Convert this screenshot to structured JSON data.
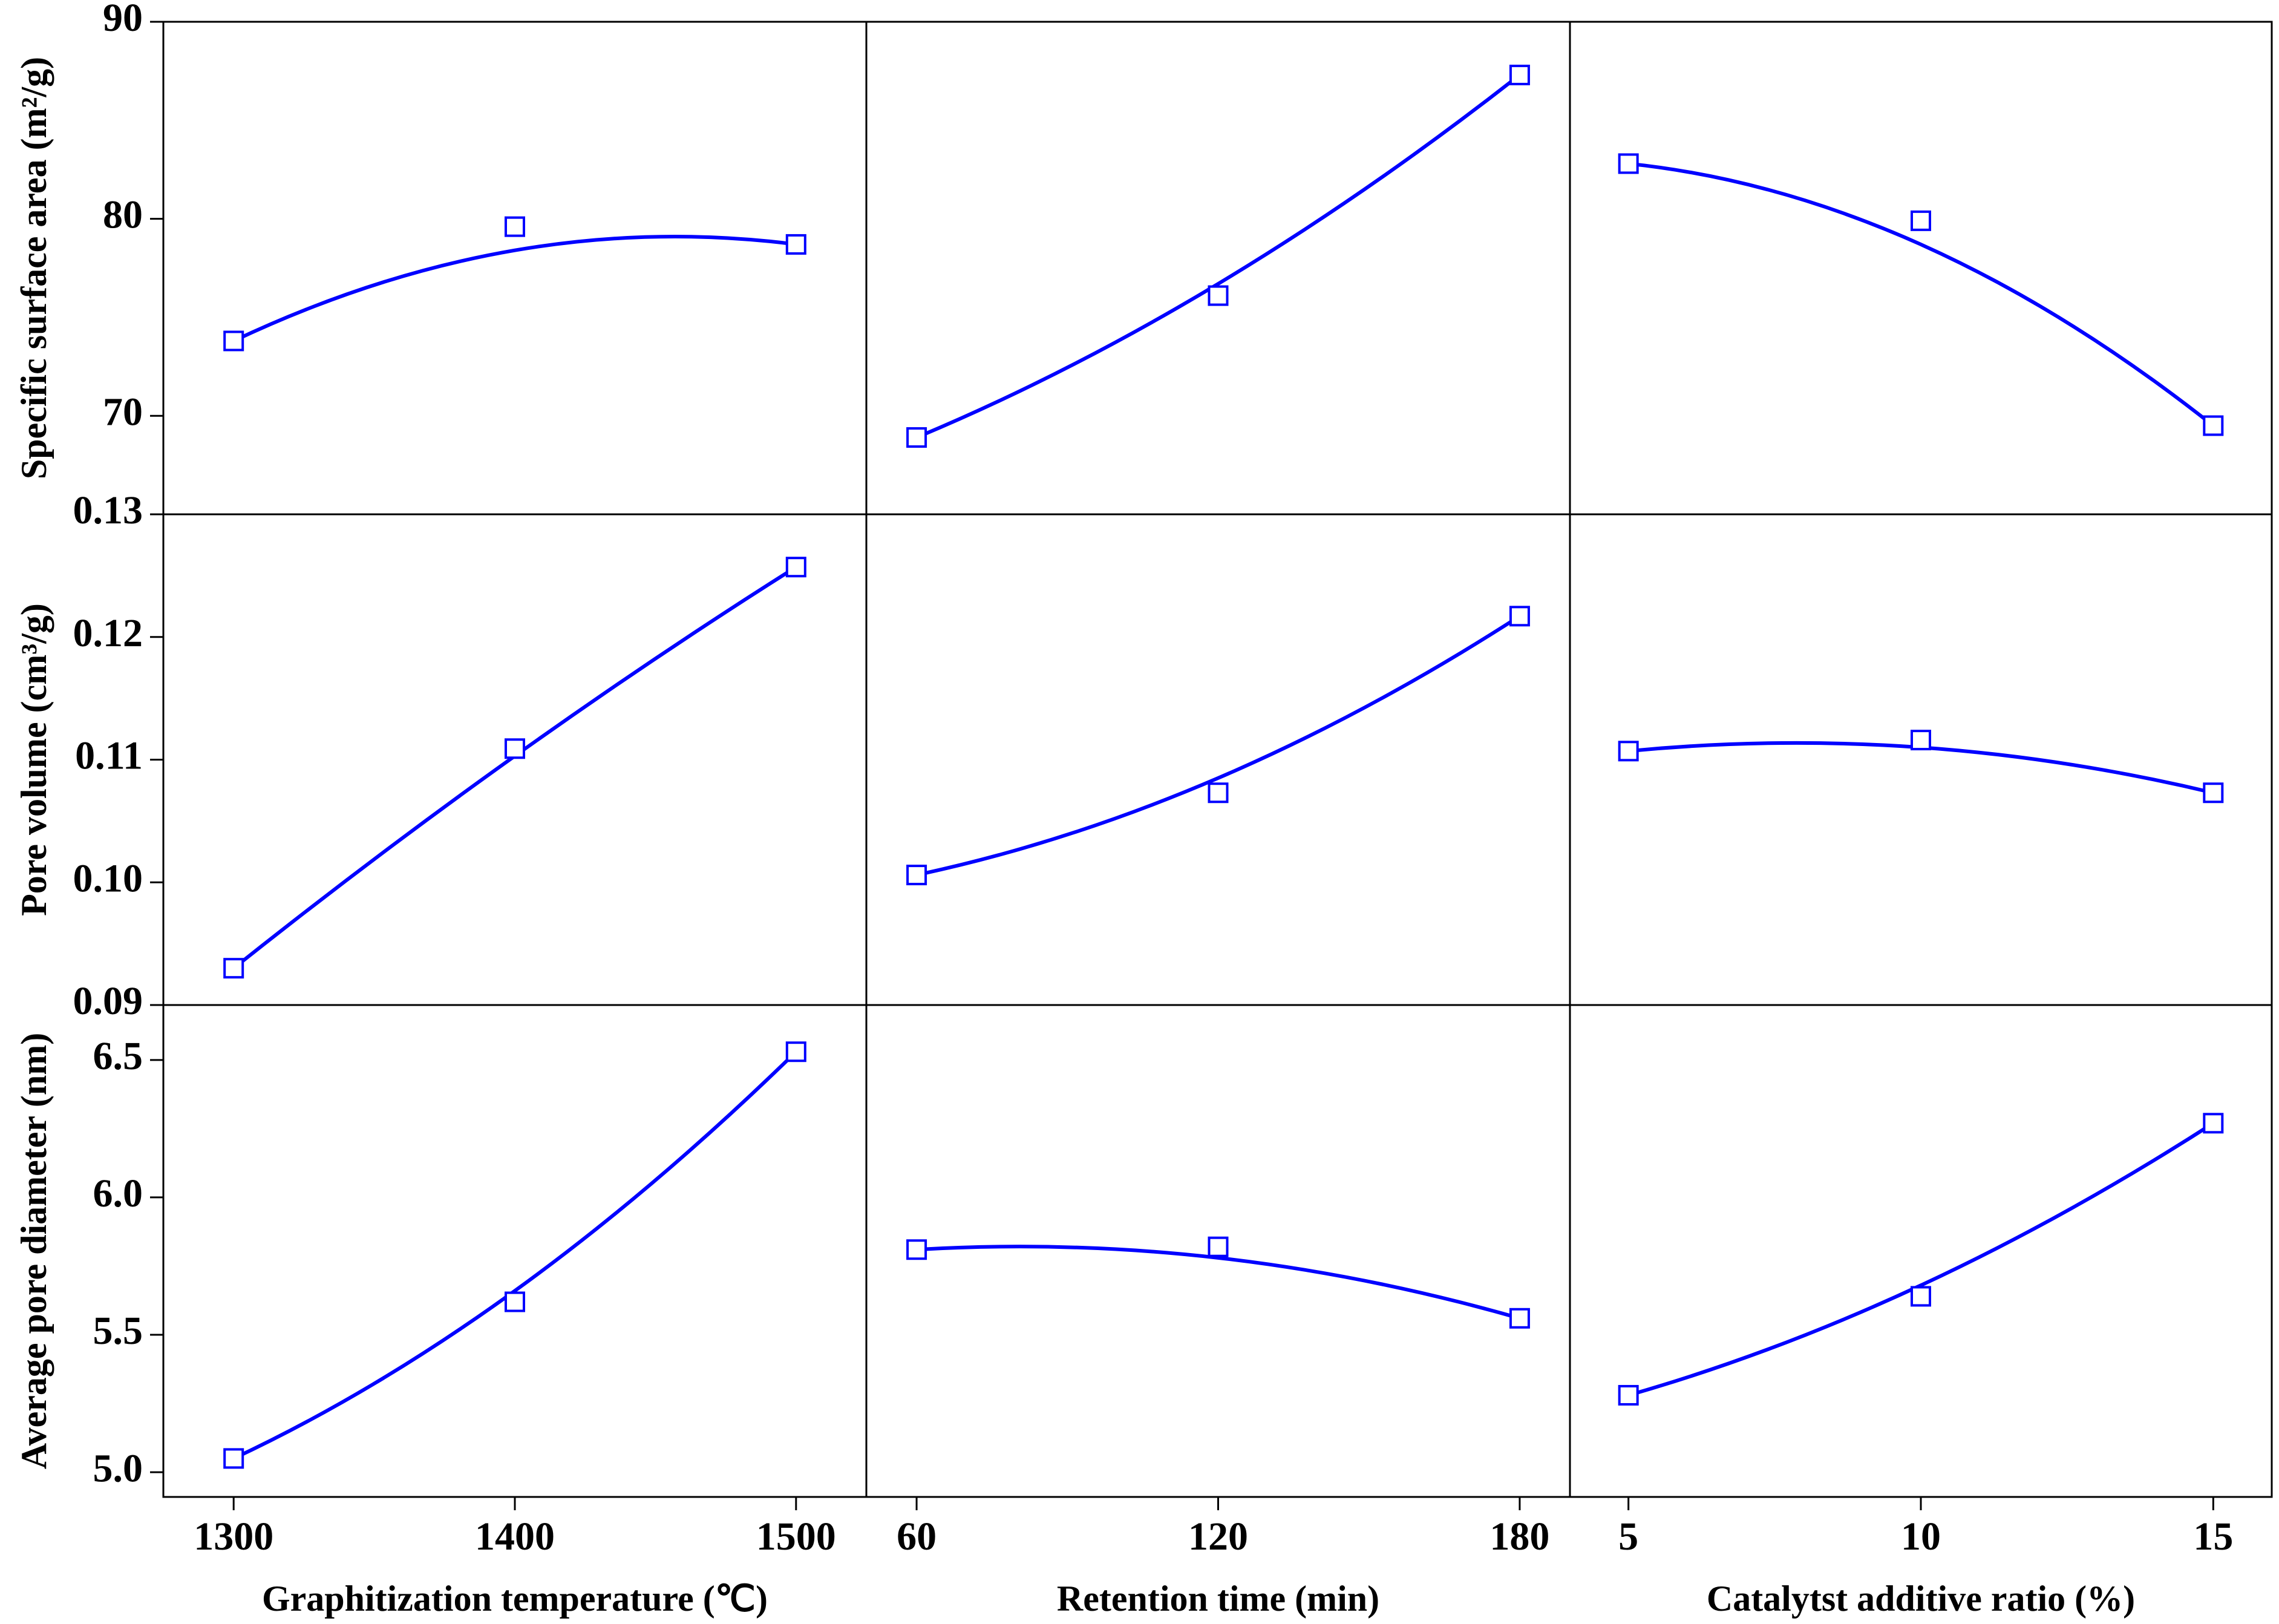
{
  "chart_data": {
    "type": "line",
    "color": "#0000ff",
    "marker": "square",
    "rows": [
      {
        "ylabel": "Specific surface area (m²/g)",
        "ylim": [
          65,
          90
        ],
        "yticks": [
          70,
          80,
          90
        ],
        "series": [
          {
            "values": [
              73.8,
              79.6,
              78.7
            ],
            "fit": [
              73.8,
              78.4,
              78.7
            ]
          },
          {
            "values": [
              68.9,
              76.1,
              87.3
            ],
            "fit": [
              68.9,
              76.7,
              87.3
            ]
          },
          {
            "values": [
              82.8,
              79.9,
              69.5
            ],
            "fit": [
              82.8,
              78.7,
              69.5
            ]
          }
        ]
      },
      {
        "ylabel": "Pore volume (cm³/g)",
        "ylim": [
          0.09,
          0.13
        ],
        "yticks": [
          0.09,
          {
            "value": 0.1,
            "label": "0.10"
          },
          0.11,
          0.12,
          0.13
        ],
        "series": [
          {
            "values": [
              0.093,
              0.1109,
              0.1257
            ],
            "fit": [
              0.093,
              0.1103,
              0.1257
            ]
          },
          {
            "values": [
              0.1006,
              0.1073,
              0.1217
            ],
            "fit": [
              0.1006,
              0.1085,
              0.1217
            ]
          },
          {
            "values": [
              0.1107,
              0.1116,
              0.1073
            ],
            "fit": [
              0.1107,
              0.111,
              0.1073
            ]
          }
        ]
      },
      {
        "ylabel": "Average pore diameter (nm)",
        "ylim": [
          4.91,
          6.7
        ],
        "yticks": [
          {
            "value": 5,
            "label": "5.0"
          },
          5.5,
          {
            "value": 6,
            "label": "6.0"
          },
          6.5
        ],
        "series": [
          {
            "values": [
              5.05,
              5.62,
              6.53
            ],
            "fit": [
              5.05,
              5.66,
              6.53
            ]
          },
          {
            "values": [
              5.81,
              5.82,
              5.56
            ],
            "fit": [
              5.81,
              5.78,
              5.56
            ]
          },
          {
            "values": [
              5.28,
              5.64,
              6.27
            ],
            "fit": [
              5.28,
              5.68,
              6.27
            ]
          }
        ]
      }
    ],
    "columns": [
      {
        "xlabel": "Graphitization temperature (℃)",
        "x": [
          1300,
          1400,
          1500
        ],
        "xlim": [
          1275,
          1525
        ],
        "xticks": [
          1300,
          1400,
          1500
        ]
      },
      {
        "xlabel": "Retention time (min)",
        "x": [
          60,
          120,
          180
        ],
        "xlim": [
          50,
          190
        ],
        "xticks": [
          60,
          120,
          180
        ]
      },
      {
        "xlabel": "Catalytst additive ratio (%)",
        "x": [
          5,
          10,
          15
        ],
        "xlim": [
          4,
          16
        ],
        "xticks": [
          5,
          10,
          15
        ]
      }
    ]
  }
}
